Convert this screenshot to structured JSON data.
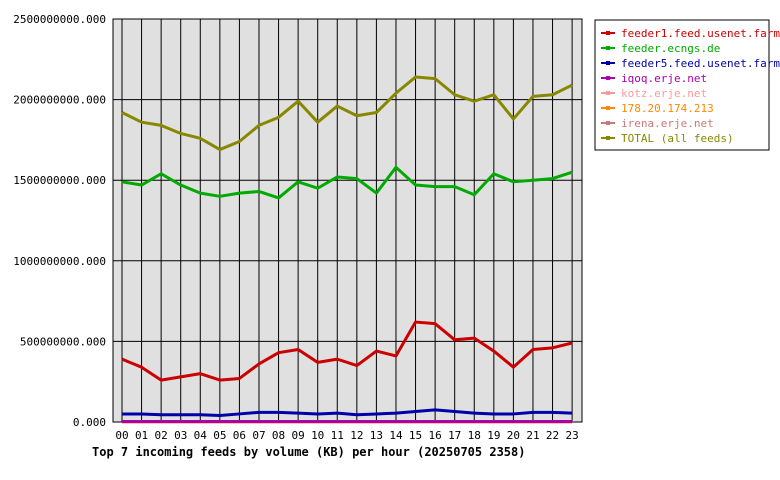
{
  "chart_data": {
    "type": "line",
    "title": "Top 7 incoming feeds by volume (KB) per hour (20250705 2358)",
    "xlabel": "",
    "ylabel": "",
    "categories": [
      "00",
      "01",
      "02",
      "03",
      "04",
      "05",
      "06",
      "07",
      "08",
      "09",
      "10",
      "11",
      "12",
      "13",
      "14",
      "15",
      "16",
      "17",
      "18",
      "19",
      "20",
      "21",
      "22",
      "23"
    ],
    "ylim": [
      0,
      2500000000
    ],
    "yticks": [
      "0.000",
      "500000000.000",
      "1000000000.000",
      "1500000000.000",
      "2000000000.000",
      "2500000000.000"
    ],
    "grid": true,
    "legend_position": "right",
    "series": [
      {
        "name": "feeder1.feed.usenet.farm",
        "color": "#cc0000",
        "values": [
          390000000,
          340000000,
          260000000,
          280000000,
          300000000,
          260000000,
          270000000,
          360000000,
          430000000,
          450000000,
          370000000,
          390000000,
          350000000,
          440000000,
          410000000,
          620000000,
          610000000,
          510000000,
          520000000,
          440000000,
          340000000,
          450000000,
          460000000,
          490000000
        ]
      },
      {
        "name": "feeder.ecngs.de",
        "color": "#00aa00",
        "values": [
          1490000000,
          1470000000,
          1540000000,
          1470000000,
          1420000000,
          1400000000,
          1420000000,
          1430000000,
          1390000000,
          1490000000,
          1450000000,
          1520000000,
          1510000000,
          1420000000,
          1580000000,
          1470000000,
          1460000000,
          1460000000,
          1410000000,
          1540000000,
          1490000000,
          1500000000,
          1510000000,
          1550000000
        ]
      },
      {
        "name": "feeder5.feed.usenet.farm",
        "color": "#0000aa",
        "values": [
          50000000,
          50000000,
          45000000,
          45000000,
          45000000,
          40000000,
          50000000,
          60000000,
          60000000,
          55000000,
          50000000,
          55000000,
          45000000,
          50000000,
          55000000,
          65000000,
          75000000,
          65000000,
          55000000,
          50000000,
          50000000,
          60000000,
          60000000,
          55000000
        ]
      },
      {
        "name": "iqoq.erje.net",
        "color": "#aa00aa",
        "values": [
          3000000,
          3000000,
          3000000,
          3000000,
          3000000,
          3000000,
          3000000,
          3000000,
          3000000,
          3000000,
          3000000,
          3000000,
          3000000,
          3000000,
          3000000,
          3000000,
          3000000,
          3000000,
          3000000,
          3000000,
          3000000,
          3000000,
          3000000,
          3000000
        ]
      },
      {
        "name": "kotz.erje.net",
        "color": "#ff9999",
        "values": [
          2000000,
          2000000,
          2000000,
          2000000,
          2000000,
          2000000,
          2000000,
          2000000,
          2000000,
          2000000,
          2000000,
          2000000,
          2000000,
          2000000,
          2000000,
          2000000,
          2000000,
          2000000,
          2000000,
          2000000,
          2000000,
          2000000,
          2000000,
          2000000
        ]
      },
      {
        "name": "178.20.174.213",
        "color": "#ff8800",
        "values": [
          1000000,
          1000000,
          1000000,
          1000000,
          1000000,
          1000000,
          1000000,
          1000000,
          1000000,
          1000000,
          1000000,
          1000000,
          1000000,
          1000000,
          1000000,
          1000000,
          1000000,
          1000000,
          1000000,
          1000000,
          1000000,
          1000000,
          1000000,
          1000000
        ]
      },
      {
        "name": "irena.erje.net",
        "color": "#cc7777",
        "values": [
          1000000,
          1000000,
          1000000,
          1000000,
          1000000,
          1000000,
          1000000,
          1000000,
          1000000,
          1000000,
          1000000,
          1000000,
          1000000,
          1000000,
          1000000,
          1000000,
          1000000,
          1000000,
          1000000,
          1000000,
          1000000,
          1000000,
          1000000,
          1000000
        ]
      },
      {
        "name": "TOTAL (all feeds)",
        "color": "#888800",
        "values": [
          1920000000,
          1860000000,
          1840000000,
          1790000000,
          1760000000,
          1690000000,
          1740000000,
          1840000000,
          1890000000,
          1990000000,
          1860000000,
          1960000000,
          1900000000,
          1920000000,
          2040000000,
          2140000000,
          2130000000,
          2030000000,
          1990000000,
          2030000000,
          1880000000,
          2020000000,
          2030000000,
          2090000000
        ]
      }
    ]
  }
}
